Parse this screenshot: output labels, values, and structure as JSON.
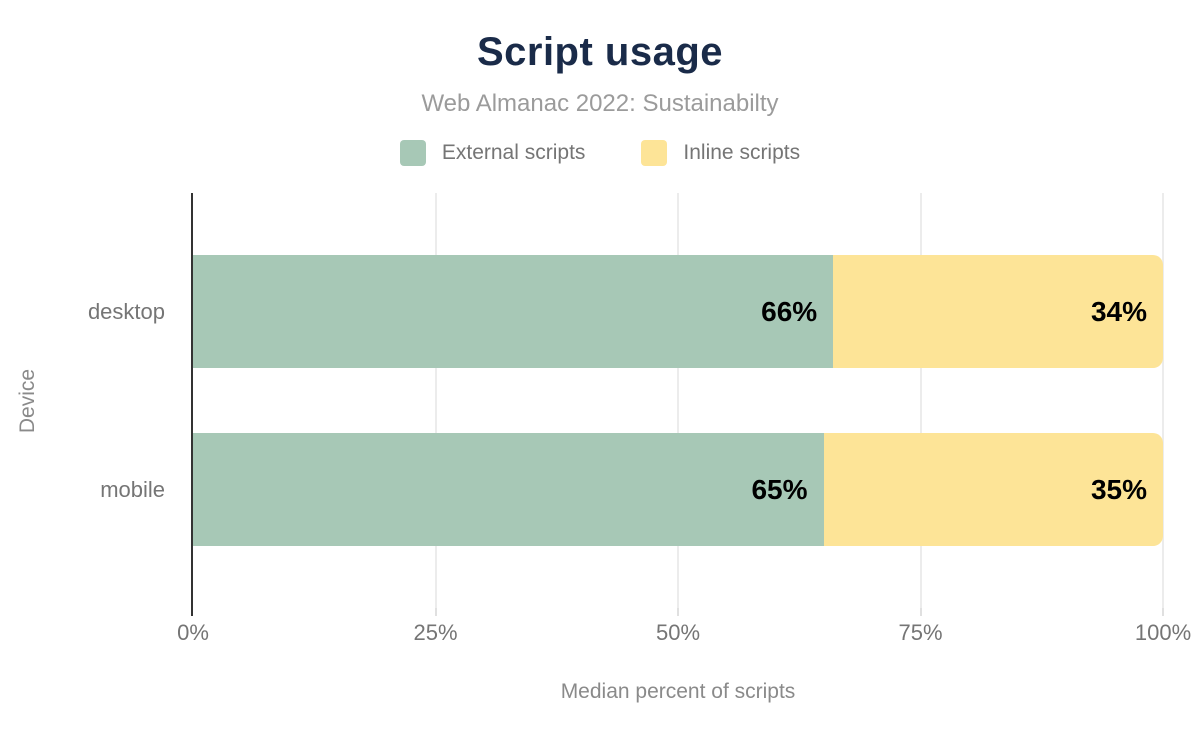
{
  "title": "Script usage",
  "subtitle": "Web Almanac 2022: Sustainabilty",
  "chart_data": {
    "type": "bar",
    "stacked": true,
    "orientation": "horizontal",
    "title": "Script usage",
    "subtitle": "Web Almanac 2022: Sustainabilty",
    "xlabel": "Median percent of scripts",
    "ylabel": "Device",
    "categories": [
      "desktop",
      "mobile"
    ],
    "series": [
      {
        "name": "External scripts",
        "color": "#a7c8b6",
        "values": [
          66,
          65
        ]
      },
      {
        "name": "Inline scripts",
        "color": "#fde497",
        "values": [
          34,
          35
        ]
      }
    ],
    "value_labels": [
      [
        "66%",
        "34%"
      ],
      [
        "65%",
        "35%"
      ]
    ],
    "xlim": [
      0,
      100
    ],
    "xticks": [
      "0%",
      "25%",
      "50%",
      "75%",
      "100%"
    ],
    "grid": "vertical-light",
    "legend_position": "top-center"
  },
  "colors": {
    "title": "#1a2b49",
    "subtitle": "#9b9b9b",
    "axis_text": "#757575",
    "axis_title_text": "#8a8a8a",
    "value_label": "#000000",
    "gridline": "#ececec",
    "axis_line": "#333333",
    "background": "#ffffff",
    "external_scripts": "#a7c8b6",
    "inline_scripts": "#fde497"
  }
}
